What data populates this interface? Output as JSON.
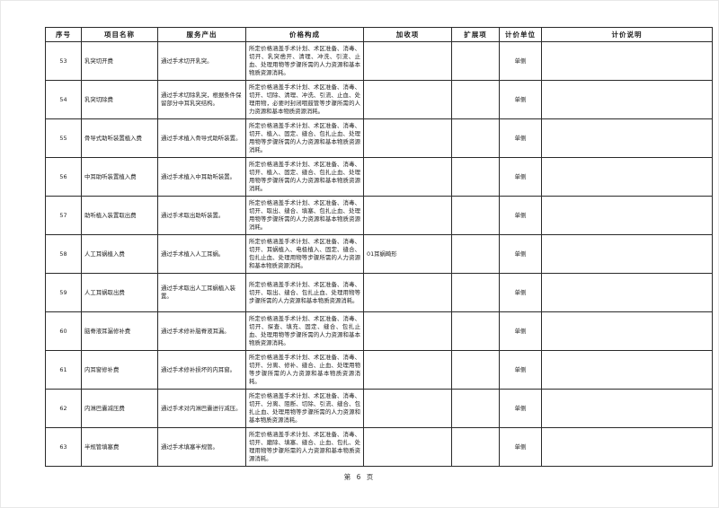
{
  "page": {
    "footer": "第 6 页"
  },
  "table": {
    "headers": [
      "序号",
      "项目名称",
      "服务产出",
      "价格构成",
      "加收项",
      "扩展项",
      "计价单位",
      "计价说明"
    ],
    "rows": [
      {
        "no": "53",
        "name": "乳突切开费",
        "output": "通过手术切开乳突。",
        "price": "所定价格涵盖手术计划、术区准备、消毒、切开、乳突凿开、清理、冲洗、引流、止血、处理用物等步骤所需的人力资源和基本物质资源消耗。",
        "surcharge": "",
        "extension": "",
        "unit": "单侧",
        "note": ""
      },
      {
        "no": "54",
        "name": "乳突切除费",
        "output": "通过手术切除乳突，根据条件保留部分中耳乳突结构。",
        "price": "所定价格涵盖手术计划、术区准备、消毒、切开、切除、清理、冲洗、引流、止血、处理用物，必要时封闭咽鼓管等步骤所需的人力资源和基本物质资源消耗。",
        "surcharge": "",
        "extension": "",
        "unit": "单侧",
        "note": ""
      },
      {
        "no": "55",
        "name": "骨导式助听装置植入费",
        "output": "通过手术植入骨导式助听装置。",
        "price": "所定价格涵盖手术计划、术区准备、消毒、切开、植入、固定、缝合、包扎止血、处理用物等步骤所需的人力资源和基本物质资源消耗。",
        "surcharge": "",
        "extension": "",
        "unit": "单侧",
        "note": ""
      },
      {
        "no": "56",
        "name": "中耳助听装置植入费",
        "output": "通过手术植入中耳助听装置。",
        "price": "所定价格涵盖手术计划、术区准备、消毒、切开、植入、固定、缝合、包扎止血、处理用物等步骤所需的人力资源和基本物质资源消耗。",
        "surcharge": "",
        "extension": "",
        "unit": "单侧",
        "note": ""
      },
      {
        "no": "57",
        "name": "助听植入装置取出费",
        "output": "通过手术取出助听装置。",
        "price": "所定价格涵盖手术计划、术区准备、消毒、切开、取出、缝合、填塞、包扎止血、处理用物等步骤所需的人力资源和基本物质资源消耗。",
        "surcharge": "",
        "extension": "",
        "unit": "单侧",
        "note": ""
      },
      {
        "no": "58",
        "name": "人工耳蜗植入费",
        "output": "通过手术植入人工耳蜗。",
        "price": "所定价格涵盖手术计划、术区准备、消毒、切开、耳蜗植入、电极植入、固定、缝合、包扎止血、处理用物等步骤所需的人力资源和基本物质资源消耗。",
        "surcharge": "01耳蜗畸形",
        "extension": "",
        "unit": "单侧",
        "note": ""
      },
      {
        "no": "59",
        "name": "人工耳蜗取出费",
        "output": "通过手术取出人工耳蜗植入装置。",
        "price": "所定价格涵盖手术计划、术区准备、消毒、切开、取出、缝合、包扎止血、处理用物等步骤所需的人力资源和基本物质资源消耗。",
        "surcharge": "",
        "extension": "",
        "unit": "单侧",
        "note": ""
      },
      {
        "no": "60",
        "name": "脑脊液耳漏修补费",
        "output": "通过手术修补脑脊液耳漏。",
        "price": "所定价格涵盖手术计划、术区准备、消毒、切开、探查、填充、固定、缝合、包扎止血、处理用物等步骤所需的人力资源和基本物质资源消耗。",
        "surcharge": "",
        "extension": "",
        "unit": "单侧",
        "note": ""
      },
      {
        "no": "61",
        "name": "内耳窗修补费",
        "output": "通过手术修补损坏的内耳窗。",
        "price": "所定价格涵盖手术计划、术区准备、消毒、切开、分离、修补、缝合、止血、处理用物等步骤所需的人力资源和基本物质资源消耗。",
        "surcharge": "",
        "extension": "",
        "unit": "单侧",
        "note": ""
      },
      {
        "no": "62",
        "name": "内淋巴囊减压费",
        "output": "通过手术对内淋巴囊进行减压。",
        "price": "所定价格涵盖手术计划、术区准备、消毒、切开、分离、阻断、切除、引流、缝合、包扎止血、处理用物等步骤所需的人力资源和基本物质资源消耗。",
        "surcharge": "",
        "extension": "",
        "unit": "单侧",
        "note": ""
      },
      {
        "no": "63",
        "name": "半规管填塞费",
        "output": "通过手术填塞半规管。",
        "price": "所定价格涵盖手术计划、术区准备、消毒、切开、磨除、填塞、缝合、止血、包扎、处理用物等步骤所需的人力资源和基本物质资源消耗。",
        "surcharge": "",
        "extension": "",
        "unit": "单侧",
        "note": ""
      }
    ]
  }
}
